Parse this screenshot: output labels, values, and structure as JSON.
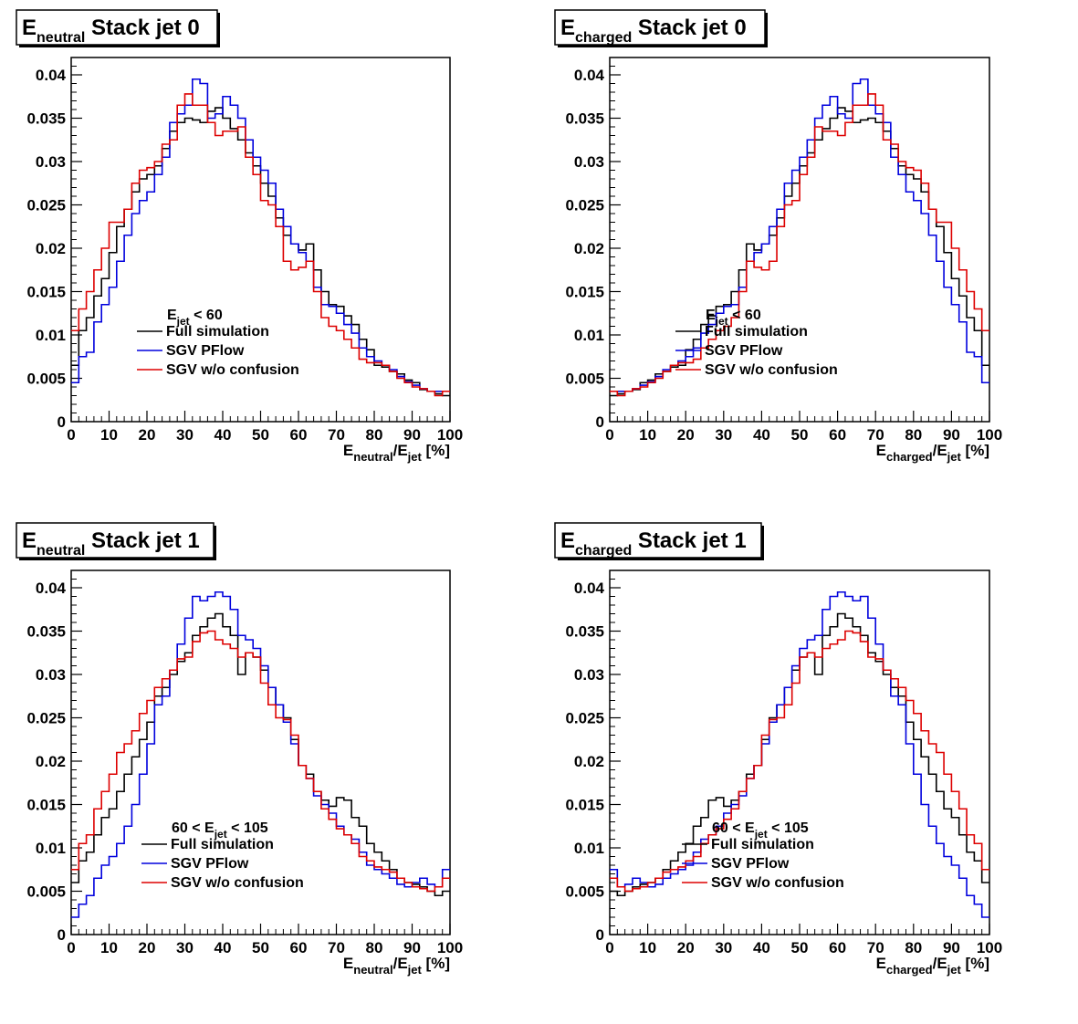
{
  "chart_data": [
    {
      "type": "line",
      "title": {
        "main": "E",
        "sub": "neutral",
        "rest": " Stack jet 0"
      },
      "xlabel": {
        "a": "E",
        "a_sub": "neutral",
        "slash": "/E",
        "b_sub": "jet",
        "unit": " [%]"
      },
      "xlim": [
        0,
        100
      ],
      "ylim": [
        0,
        0.042
      ],
      "xticks": [
        "0",
        "10",
        "20",
        "30",
        "40",
        "50",
        "60",
        "70",
        "80",
        "90",
        "100"
      ],
      "yticks": [
        "0",
        "0.005",
        "0.01",
        "0.015",
        "0.02",
        "0.025",
        "0.03",
        "0.035",
        "0.04"
      ],
      "legend": {
        "header": {
          "pre": "",
          "mid": "E",
          "sub": "jet",
          "post": " < 60"
        },
        "entries": [
          "Full simulation",
          "SGV PFlow",
          "SGV w/o confusion"
        ]
      },
      "x": [
        0,
        2,
        4,
        6,
        8,
        10,
        12,
        14,
        16,
        18,
        20,
        22,
        24,
        26,
        28,
        30,
        32,
        34,
        36,
        38,
        40,
        42,
        44,
        46,
        48,
        50,
        52,
        54,
        56,
        58,
        60,
        62,
        64,
        66,
        68,
        70,
        72,
        74,
        76,
        78,
        80,
        82,
        84,
        86,
        88,
        90,
        92,
        94,
        96,
        98
      ],
      "series": [
        {
          "name": "Full simulation",
          "color": "#000000",
          "values": [
            0.0065,
            0.0105,
            0.012,
            0.0145,
            0.0165,
            0.0195,
            0.0225,
            0.0245,
            0.0265,
            0.028,
            0.0285,
            0.0295,
            0.0315,
            0.0335,
            0.0345,
            0.035,
            0.0348,
            0.0345,
            0.0358,
            0.0362,
            0.035,
            0.0338,
            0.0325,
            0.031,
            0.0295,
            0.0275,
            0.026,
            0.0235,
            0.0215,
            0.0205,
            0.0198,
            0.0205,
            0.0175,
            0.015,
            0.0135,
            0.0133,
            0.0122,
            0.0112,
            0.0095,
            0.0083,
            0.0065,
            0.0063,
            0.0058,
            0.0055,
            0.0048,
            0.0045,
            0.0037,
            0.0035,
            0.0032,
            0.003
          ]
        },
        {
          "name": "SGV PFlow",
          "color": "#0000dd",
          "values": [
            0.0045,
            0.0075,
            0.008,
            0.0115,
            0.0135,
            0.0155,
            0.0185,
            0.0215,
            0.024,
            0.0255,
            0.0265,
            0.0285,
            0.0305,
            0.0345,
            0.0355,
            0.0365,
            0.0395,
            0.039,
            0.035,
            0.0355,
            0.0375,
            0.0365,
            0.035,
            0.0325,
            0.0305,
            0.029,
            0.0275,
            0.0245,
            0.0225,
            0.0205,
            0.0195,
            0.0185,
            0.0155,
            0.0135,
            0.0133,
            0.0125,
            0.0112,
            0.0102,
            0.0085,
            0.0075,
            0.007,
            0.0065,
            0.006,
            0.0052,
            0.0046,
            0.0042,
            0.0038,
            0.0035,
            0.0035,
            0.0035
          ]
        },
        {
          "name": "SGV w/o confusion",
          "color": "#dd0000",
          "values": [
            0.0105,
            0.013,
            0.015,
            0.0175,
            0.02,
            0.023,
            0.023,
            0.0245,
            0.0275,
            0.029,
            0.0293,
            0.03,
            0.032,
            0.0325,
            0.0365,
            0.0378,
            0.0365,
            0.0365,
            0.0345,
            0.033,
            0.0335,
            0.0335,
            0.034,
            0.0305,
            0.0285,
            0.0255,
            0.025,
            0.0225,
            0.0185,
            0.0175,
            0.0178,
            0.0185,
            0.015,
            0.012,
            0.011,
            0.0105,
            0.0095,
            0.0085,
            0.0072,
            0.0068,
            0.0068,
            0.0065,
            0.0058,
            0.005,
            0.0045,
            0.004,
            0.0038,
            0.0035,
            0.003,
            0.0035
          ]
        }
      ]
    },
    {
      "type": "line",
      "title": {
        "main": "E",
        "sub": "charged",
        "rest": " Stack jet 0"
      },
      "xlabel": {
        "a": "E",
        "a_sub": "charged",
        "slash": "/E",
        "b_sub": "jet",
        "unit": " [%]"
      },
      "xlim": [
        0,
        100
      ],
      "ylim": [
        0,
        0.042
      ],
      "xticks": [
        "0",
        "10",
        "20",
        "30",
        "40",
        "50",
        "60",
        "70",
        "80",
        "90",
        "100"
      ],
      "yticks": [
        "0",
        "0.005",
        "0.01",
        "0.015",
        "0.02",
        "0.025",
        "0.03",
        "0.035",
        "0.04"
      ],
      "legend": {
        "header": {
          "pre": "",
          "mid": "E",
          "sub": "jet",
          "post": " < 60"
        },
        "entries": [
          "Full simulation",
          "SGV PFlow",
          "SGV w/o confusion"
        ]
      },
      "x": [
        0,
        2,
        4,
        6,
        8,
        10,
        12,
        14,
        16,
        18,
        20,
        22,
        24,
        26,
        28,
        30,
        32,
        34,
        36,
        38,
        40,
        42,
        44,
        46,
        48,
        50,
        52,
        54,
        56,
        58,
        60,
        62,
        64,
        66,
        68,
        70,
        72,
        74,
        76,
        78,
        80,
        82,
        84,
        86,
        88,
        90,
        92,
        94,
        96,
        98
      ],
      "series": [
        {
          "name": "Full simulation",
          "color": "#000000",
          "values": [
            0.003,
            0.0032,
            0.0035,
            0.0037,
            0.0045,
            0.0048,
            0.0055,
            0.0058,
            0.0063,
            0.0065,
            0.0083,
            0.0095,
            0.0112,
            0.0122,
            0.0133,
            0.0135,
            0.015,
            0.0175,
            0.0205,
            0.0198,
            0.0205,
            0.0215,
            0.0235,
            0.026,
            0.0275,
            0.0295,
            0.031,
            0.0325,
            0.0338,
            0.035,
            0.0362,
            0.0358,
            0.0345,
            0.0348,
            0.035,
            0.0345,
            0.0335,
            0.0315,
            0.0295,
            0.0285,
            0.028,
            0.0265,
            0.0245,
            0.0225,
            0.0195,
            0.0165,
            0.0145,
            0.012,
            0.0105,
            0.0065
          ]
        },
        {
          "name": "SGV PFlow",
          "color": "#0000dd",
          "values": [
            0.0035,
            0.0035,
            0.0035,
            0.0038,
            0.0042,
            0.0046,
            0.0052,
            0.006,
            0.0065,
            0.007,
            0.0075,
            0.0085,
            0.0102,
            0.0112,
            0.0125,
            0.0133,
            0.0135,
            0.0155,
            0.0185,
            0.0195,
            0.0205,
            0.0225,
            0.0245,
            0.0275,
            0.029,
            0.0305,
            0.0325,
            0.035,
            0.0365,
            0.0375,
            0.0355,
            0.035,
            0.039,
            0.0395,
            0.0365,
            0.0355,
            0.0345,
            0.0305,
            0.0285,
            0.0265,
            0.0255,
            0.024,
            0.0215,
            0.0185,
            0.0155,
            0.0135,
            0.0115,
            0.008,
            0.0075,
            0.0045
          ]
        },
        {
          "name": "SGV w/o confusion",
          "color": "#dd0000",
          "values": [
            0.0035,
            0.003,
            0.0035,
            0.0038,
            0.004,
            0.0045,
            0.005,
            0.0058,
            0.0065,
            0.0068,
            0.0068,
            0.0072,
            0.0085,
            0.0095,
            0.0105,
            0.011,
            0.012,
            0.015,
            0.0185,
            0.0178,
            0.0175,
            0.0185,
            0.0225,
            0.025,
            0.0255,
            0.0285,
            0.0305,
            0.034,
            0.0335,
            0.0335,
            0.033,
            0.0345,
            0.0365,
            0.0365,
            0.0378,
            0.0365,
            0.0325,
            0.032,
            0.03,
            0.0293,
            0.029,
            0.0275,
            0.0245,
            0.023,
            0.023,
            0.02,
            0.0175,
            0.015,
            0.013,
            0.0105
          ]
        }
      ]
    },
    {
      "type": "line",
      "title": {
        "main": "E",
        "sub": "neutral",
        "rest": " Stack jet 1"
      },
      "xlabel": {
        "a": "E",
        "a_sub": "neutral",
        "slash": "/E",
        "b_sub": "jet",
        "unit": " [%]"
      },
      "xlim": [
        0,
        100
      ],
      "ylim": [
        0,
        0.042
      ],
      "xticks": [
        "0",
        "10",
        "20",
        "30",
        "40",
        "50",
        "60",
        "70",
        "80",
        "90",
        "100"
      ],
      "yticks": [
        "0",
        "0.005",
        "0.01",
        "0.015",
        "0.02",
        "0.025",
        "0.03",
        "0.035",
        "0.04"
      ],
      "legend": {
        "header": {
          "pre": "60 < ",
          "mid": "E",
          "sub": "jet",
          "post": " < 105"
        },
        "entries": [
          "Full simulation",
          "SGV PFlow",
          "SGV w/o confusion"
        ]
      },
      "x": [
        0,
        2,
        4,
        6,
        8,
        10,
        12,
        14,
        16,
        18,
        20,
        22,
        24,
        26,
        28,
        30,
        32,
        34,
        36,
        38,
        40,
        42,
        44,
        46,
        48,
        50,
        52,
        54,
        56,
        58,
        60,
        62,
        64,
        66,
        68,
        70,
        72,
        74,
        76,
        78,
        80,
        82,
        84,
        86,
        88,
        90,
        92,
        94,
        96,
        98
      ],
      "series": [
        {
          "name": "Full simulation",
          "color": "#000000",
          "values": [
            0.006,
            0.0085,
            0.0095,
            0.0115,
            0.0135,
            0.0145,
            0.0165,
            0.0185,
            0.0205,
            0.0225,
            0.0245,
            0.0275,
            0.0285,
            0.03,
            0.0315,
            0.0325,
            0.0345,
            0.0355,
            0.0365,
            0.037,
            0.0355,
            0.0345,
            0.03,
            0.0325,
            0.032,
            0.0305,
            0.0285,
            0.0265,
            0.025,
            0.0225,
            0.0195,
            0.0185,
            0.0165,
            0.0155,
            0.0148,
            0.0158,
            0.0155,
            0.0135,
            0.0125,
            0.0105,
            0.0095,
            0.0085,
            0.0075,
            0.0065,
            0.006,
            0.0058,
            0.0055,
            0.005,
            0.0045,
            0.005
          ]
        },
        {
          "name": "SGV PFlow",
          "color": "#0000dd",
          "values": [
            0.002,
            0.0035,
            0.0045,
            0.0065,
            0.008,
            0.009,
            0.0105,
            0.0125,
            0.015,
            0.0185,
            0.022,
            0.0265,
            0.0275,
            0.0305,
            0.0335,
            0.0365,
            0.039,
            0.0385,
            0.039,
            0.0395,
            0.039,
            0.0375,
            0.0345,
            0.034,
            0.033,
            0.031,
            0.0285,
            0.0265,
            0.0245,
            0.022,
            0.0195,
            0.018,
            0.016,
            0.015,
            0.014,
            0.0125,
            0.0115,
            0.011,
            0.0095,
            0.008,
            0.0075,
            0.007,
            0.0065,
            0.0058,
            0.0055,
            0.006,
            0.0065,
            0.0058,
            0.0055,
            0.0075
          ]
        },
        {
          "name": "SGV w/o confusion",
          "color": "#dd0000",
          "values": [
            0.0075,
            0.0105,
            0.0115,
            0.0145,
            0.0165,
            0.0185,
            0.021,
            0.022,
            0.0235,
            0.0255,
            0.027,
            0.0285,
            0.0295,
            0.0305,
            0.0318,
            0.032,
            0.0338,
            0.0348,
            0.035,
            0.034,
            0.0335,
            0.033,
            0.032,
            0.0325,
            0.032,
            0.029,
            0.0265,
            0.025,
            0.0248,
            0.023,
            0.0195,
            0.018,
            0.0165,
            0.0145,
            0.0133,
            0.0122,
            0.0115,
            0.0105,
            0.009,
            0.0085,
            0.0078,
            0.0075,
            0.0072,
            0.0065,
            0.006,
            0.0055,
            0.0053,
            0.005,
            0.0055,
            0.0065
          ]
        }
      ]
    },
    {
      "type": "line",
      "title": {
        "main": "E",
        "sub": "charged",
        "rest": " Stack jet 1"
      },
      "xlabel": {
        "a": "E",
        "a_sub": "charged",
        "slash": "/E",
        "b_sub": "jet",
        "unit": " [%]"
      },
      "xlim": [
        0,
        100
      ],
      "ylim": [
        0,
        0.042
      ],
      "xticks": [
        "0",
        "10",
        "20",
        "30",
        "40",
        "50",
        "60",
        "70",
        "80",
        "90",
        "100"
      ],
      "yticks": [
        "0",
        "0.005",
        "0.01",
        "0.015",
        "0.02",
        "0.025",
        "0.03",
        "0.035",
        "0.04"
      ],
      "legend": {
        "header": {
          "pre": "60 < ",
          "mid": "E",
          "sub": "jet",
          "post": " < 105"
        },
        "entries": [
          "Full simulation",
          "SGV PFlow",
          "SGV w/o confusion"
        ]
      },
      "x": [
        0,
        2,
        4,
        6,
        8,
        10,
        12,
        14,
        16,
        18,
        20,
        22,
        24,
        26,
        28,
        30,
        32,
        34,
        36,
        38,
        40,
        42,
        44,
        46,
        48,
        50,
        52,
        54,
        56,
        58,
        60,
        62,
        64,
        66,
        68,
        70,
        72,
        74,
        76,
        78,
        80,
        82,
        84,
        86,
        88,
        90,
        92,
        94,
        96,
        98
      ],
      "series": [
        {
          "name": "Full simulation",
          "color": "#000000",
          "values": [
            0.005,
            0.0045,
            0.005,
            0.0055,
            0.0058,
            0.006,
            0.0065,
            0.0075,
            0.0085,
            0.0095,
            0.0105,
            0.0125,
            0.0135,
            0.0155,
            0.0158,
            0.0148,
            0.0155,
            0.0165,
            0.0185,
            0.0195,
            0.0225,
            0.025,
            0.0265,
            0.0285,
            0.0305,
            0.032,
            0.0325,
            0.03,
            0.0345,
            0.0355,
            0.037,
            0.0365,
            0.0355,
            0.0345,
            0.0325,
            0.0315,
            0.03,
            0.0285,
            0.0275,
            0.0245,
            0.0225,
            0.0205,
            0.0185,
            0.0165,
            0.0145,
            0.0135,
            0.0115,
            0.0095,
            0.0085,
            0.006
          ]
        },
        {
          "name": "SGV PFlow",
          "color": "#0000dd",
          "values": [
            0.0075,
            0.0055,
            0.0058,
            0.0065,
            0.006,
            0.0055,
            0.0058,
            0.0065,
            0.007,
            0.0075,
            0.008,
            0.0095,
            0.011,
            0.0115,
            0.0125,
            0.014,
            0.015,
            0.016,
            0.018,
            0.0195,
            0.022,
            0.0245,
            0.0265,
            0.0285,
            0.031,
            0.033,
            0.034,
            0.0345,
            0.0375,
            0.039,
            0.0395,
            0.039,
            0.0385,
            0.039,
            0.0365,
            0.0335,
            0.0305,
            0.0275,
            0.0265,
            0.022,
            0.0185,
            0.015,
            0.0125,
            0.0105,
            0.009,
            0.008,
            0.0065,
            0.0045,
            0.0035,
            0.002
          ]
        },
        {
          "name": "SGV w/o confusion",
          "color": "#dd0000",
          "values": [
            0.0065,
            0.0055,
            0.005,
            0.0053,
            0.0055,
            0.006,
            0.0065,
            0.0072,
            0.0075,
            0.0078,
            0.0085,
            0.009,
            0.0105,
            0.0115,
            0.0122,
            0.0133,
            0.0145,
            0.0165,
            0.018,
            0.0195,
            0.023,
            0.0248,
            0.025,
            0.0265,
            0.029,
            0.032,
            0.0325,
            0.032,
            0.033,
            0.0335,
            0.034,
            0.035,
            0.0348,
            0.0338,
            0.032,
            0.0318,
            0.0305,
            0.0295,
            0.0285,
            0.027,
            0.0255,
            0.0235,
            0.022,
            0.021,
            0.0185,
            0.0165,
            0.0145,
            0.0115,
            0.0105,
            0.0075
          ]
        }
      ]
    }
  ]
}
